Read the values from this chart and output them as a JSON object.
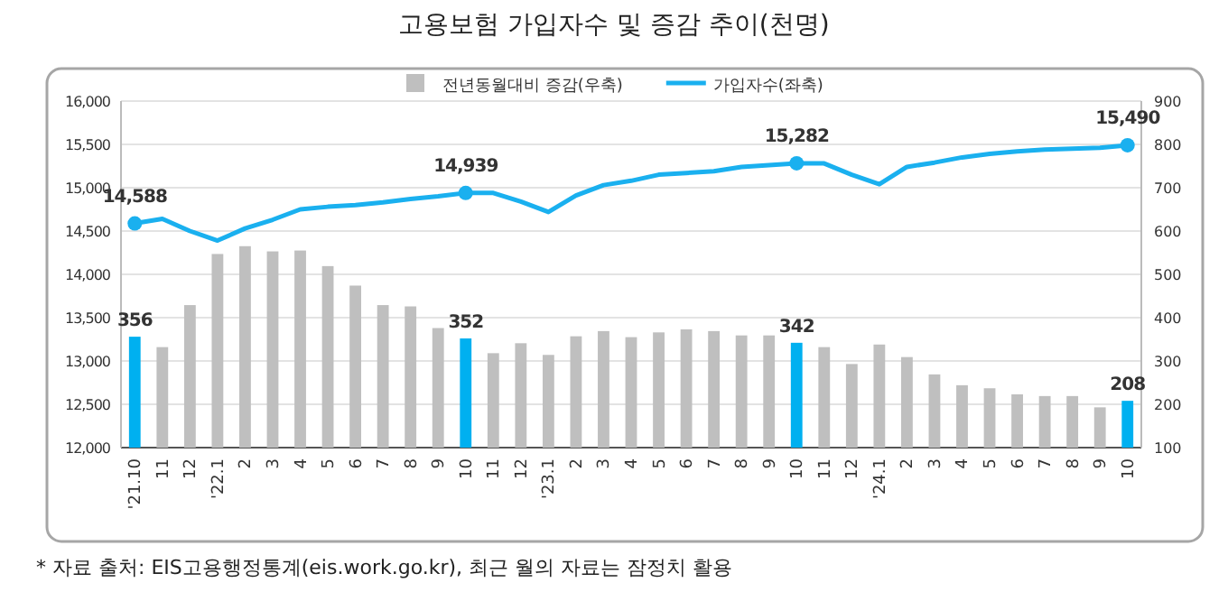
{
  "chart_data": {
    "type": "bar",
    "title": "고용보험 가입자수 및 증감 추이(천명)",
    "categories": [
      "'21.10",
      "11",
      "12",
      "'22.1",
      "2",
      "3",
      "4",
      "5",
      "6",
      "7",
      "8",
      "9",
      "10",
      "11",
      "12",
      "'23.1",
      "2",
      "3",
      "4",
      "5",
      "6",
      "7",
      "8",
      "9",
      "10",
      "11",
      "12",
      "'24.1",
      "2",
      "3",
      "4",
      "5",
      "6",
      "7",
      "8",
      "9",
      "10"
    ],
    "series": [
      {
        "name": "전년동월대비 증감(우축)",
        "axis": "y2",
        "color": "#bfbfbf",
        "colors": [
          "#00b0f0",
          "#bfbfbf",
          "#bfbfbf",
          "#bfbfbf",
          "#bfbfbf",
          "#bfbfbf",
          "#bfbfbf",
          "#bfbfbf",
          "#bfbfbf",
          "#bfbfbf",
          "#bfbfbf",
          "#bfbfbf",
          "#00b0f0",
          "#bfbfbf",
          "#bfbfbf",
          "#bfbfbf",
          "#bfbfbf",
          "#bfbfbf",
          "#bfbfbf",
          "#bfbfbf",
          "#bfbfbf",
          "#bfbfbf",
          "#bfbfbf",
          "#bfbfbf",
          "#00b0f0",
          "#bfbfbf",
          "#bfbfbf",
          "#bfbfbf",
          "#bfbfbf",
          "#bfbfbf",
          "#bfbfbf",
          "#bfbfbf",
          "#bfbfbf",
          "#bfbfbf",
          "#bfbfbf",
          "#bfbfbf",
          "#00b0f0"
        ],
        "values": [
          356,
          332,
          429,
          547,
          565,
          553,
          555,
          519,
          474,
          429,
          426,
          376,
          352,
          318,
          341,
          314,
          357,
          369,
          355,
          366,
          373,
          369,
          359,
          359,
          342,
          332,
          293,
          338,
          309,
          269,
          244,
          237,
          223,
          219,
          219,
          193,
          208
        ],
        "value_labels": [
          "356",
          null,
          null,
          null,
          null,
          null,
          null,
          null,
          null,
          null,
          null,
          null,
          "352",
          null,
          null,
          null,
          null,
          null,
          null,
          null,
          null,
          null,
          null,
          null,
          "342",
          null,
          null,
          null,
          null,
          null,
          null,
          null,
          null,
          null,
          null,
          null,
          "208"
        ]
      },
      {
        "name": "가입자수(좌축)",
        "type": "line",
        "color": "#1ab0ef",
        "line_style": "solid",
        "values": [
          14588,
          14640,
          14500,
          14390,
          14530,
          14630,
          14750,
          14780,
          14800,
          14830,
          14870,
          14900,
          14939,
          14940,
          14840,
          14720,
          14910,
          15030,
          15080,
          15150,
          15170,
          15190,
          15240,
          15260,
          15282,
          15280,
          15150,
          15040,
          15240,
          15290,
          15350,
          15390,
          15420,
          15440,
          15450,
          15460,
          15490
        ],
        "value_labels": [
          "14,588",
          null,
          null,
          null,
          null,
          null,
          null,
          null,
          null,
          null,
          null,
          null,
          "14,939",
          null,
          null,
          null,
          null,
          null,
          null,
          null,
          null,
          null,
          null,
          null,
          "15,282",
          null,
          null,
          null,
          null,
          null,
          null,
          null,
          null,
          null,
          null,
          null,
          "15,490"
        ]
      }
    ],
    "ylim": [
      12000,
      16000
    ],
    "yticks": [
      {
        "value": 12000,
        "label": "12,000"
      },
      {
        "value": 12500,
        "label": "12,500"
      },
      {
        "value": 13000,
        "label": "13,000"
      },
      {
        "value": 13500,
        "label": "13,500"
      },
      {
        "value": 14000,
        "label": "14,000"
      },
      {
        "value": 14500,
        "label": "14,500"
      },
      {
        "value": 15000,
        "label": "15,000"
      },
      {
        "value": 15500,
        "label": "15,500"
      },
      {
        "value": 16000,
        "label": "16,000"
      }
    ],
    "y2lim": [
      100,
      900
    ],
    "y2ticks": [
      100,
      200,
      300,
      400,
      500,
      600,
      700,
      800,
      900
    ],
    "grid": "y",
    "legend": "top",
    "annotations": [
      "* 자료 출처: EIS고용행정통계(eis.work.go.kr), 최근 월의 자료는 잠정치 활용"
    ]
  }
}
